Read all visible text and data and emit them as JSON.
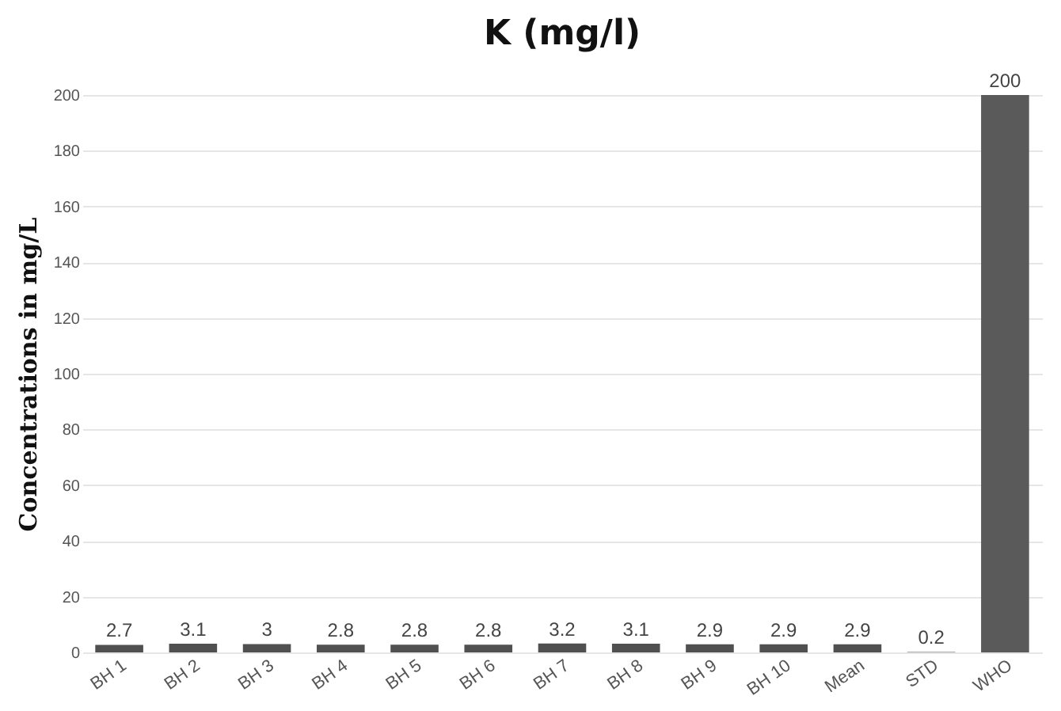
{
  "chart_data": {
    "type": "bar",
    "title": "K (mg/l)",
    "ylabel": "Concentrations in mg/L",
    "categories": [
      "BH 1",
      "BH 2",
      "BH 3",
      "BH 4",
      "BH 5",
      "BH 6",
      "BH 7",
      "BH 8",
      "BH 9",
      "BH 10",
      "Mean",
      "STD",
      "WHO"
    ],
    "values": [
      2.7,
      3.1,
      3,
      2.8,
      2.8,
      2.8,
      3.2,
      3.1,
      2.9,
      2.9,
      2.9,
      0.2,
      200
    ],
    "colors": [
      "#505050",
      "#505050",
      "#505050",
      "#505050",
      "#505050",
      "#505050",
      "#505050",
      "#505050",
      "#505050",
      "#505050",
      "#505050",
      "#8c8c8c",
      "#5a5a5a"
    ],
    "ylim": [
      0,
      200
    ],
    "yticks": [
      0,
      20,
      40,
      60,
      80,
      100,
      120,
      140,
      160,
      180,
      200
    ],
    "grid": "y",
    "data_labels": true
  }
}
